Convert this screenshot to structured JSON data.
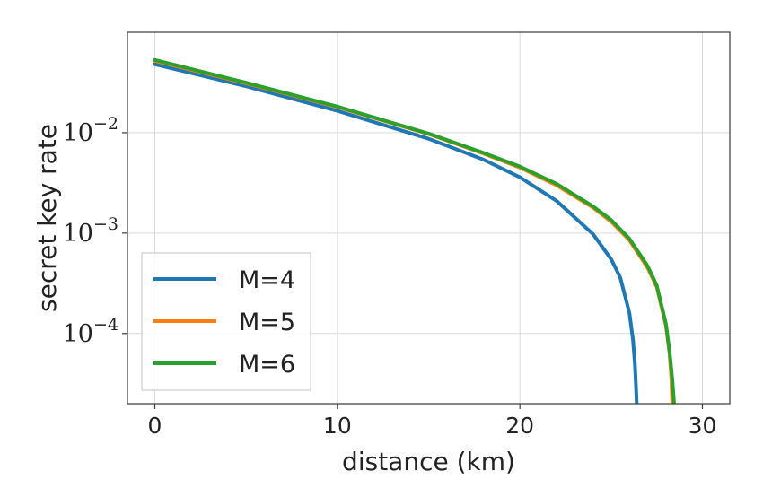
{
  "chart_data": {
    "type": "line",
    "title": "",
    "xlabel": "distance (km)",
    "ylabel": "secret key rate",
    "yscale": "log",
    "xlim": [
      -1.5,
      31.5
    ],
    "ylim": [
      2e-05,
      0.1
    ],
    "xticks": [
      {
        "value": 0,
        "label": "0"
      },
      {
        "value": 10,
        "label": "10"
      },
      {
        "value": 20,
        "label": "20"
      },
      {
        "value": 30,
        "label": "30"
      }
    ],
    "yticks": [
      {
        "value": 0.01,
        "label": "10",
        "exp": "−2"
      },
      {
        "value": 0.001,
        "label": "10",
        "exp": "−3"
      },
      {
        "value": 0.0001,
        "label": "10",
        "exp": "−4"
      }
    ],
    "grid": true,
    "legend": "lower-left",
    "series": [
      {
        "name": "M=4",
        "color": "#1f77b4",
        "x": [
          0,
          5,
          10,
          15,
          18,
          20,
          22,
          24,
          25,
          25.5,
          26,
          26.2,
          26.3,
          26.35,
          26.4
        ],
        "y": [
          0.048,
          0.029,
          0.0165,
          0.0087,
          0.0054,
          0.0036,
          0.0021,
          0.00098,
          0.00055,
          0.00036,
          0.00016,
          8.5e-05,
          5e-05,
          3.3e-05,
          2e-05
        ]
      },
      {
        "name": "M=5",
        "color": "#ff7f0e",
        "x": [
          0,
          5,
          10,
          15,
          18,
          20,
          22,
          24,
          25,
          26,
          27,
          27.5,
          28,
          28.2,
          28.3,
          28.35
        ],
        "y": [
          0.052,
          0.031,
          0.018,
          0.0097,
          0.0062,
          0.0045,
          0.003,
          0.0018,
          0.0013,
          0.00085,
          0.00045,
          0.00029,
          0.00012,
          6.3e-05,
          3.5e-05,
          2e-05
        ]
      },
      {
        "name": "M=6",
        "color": "#2ca02c",
        "x": [
          0,
          5,
          10,
          15,
          18,
          20,
          22,
          24,
          25,
          26,
          27,
          27.5,
          28,
          28.2,
          28.35,
          28.45
        ],
        "y": [
          0.053,
          0.0315,
          0.0182,
          0.0098,
          0.0063,
          0.0046,
          0.0031,
          0.00185,
          0.00135,
          0.00088,
          0.00047,
          0.0003,
          0.000125,
          6.6e-05,
          3.5e-05,
          2e-05
        ]
      }
    ]
  }
}
